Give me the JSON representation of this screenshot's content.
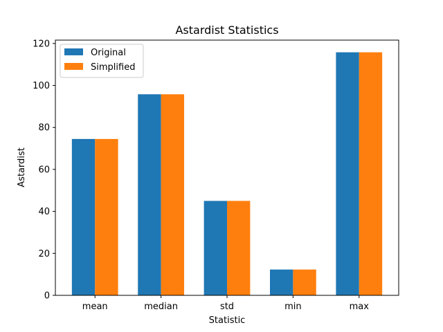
{
  "chart_data": {
    "type": "bar",
    "title": "Astardist Statistics",
    "xlabel": "Statistic",
    "ylabel": "Astardist",
    "categories": [
      "mean",
      "median",
      "std",
      "min",
      "max"
    ],
    "series": [
      {
        "name": "Original",
        "color": "#1f77b4",
        "values": [
          74.5,
          95.8,
          45.0,
          12.3,
          115.8
        ]
      },
      {
        "name": "Simplified",
        "color": "#ff7f0e",
        "values": [
          74.5,
          95.8,
          45.0,
          12.3,
          115.8
        ]
      }
    ],
    "ylim": [
      0,
      121.6
    ],
    "yticks": [
      0,
      20,
      40,
      60,
      80,
      100,
      120
    ],
    "grid": false,
    "legend_position": "top-left"
  }
}
